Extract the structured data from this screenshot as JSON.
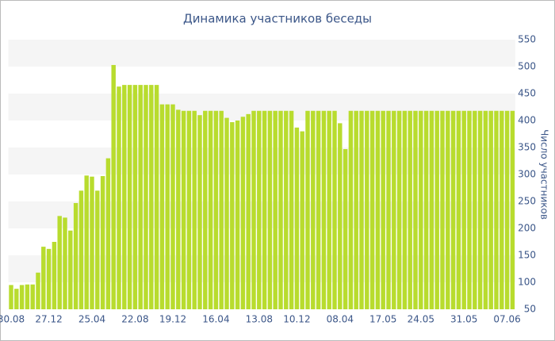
{
  "chart_data": {
    "type": "bar",
    "title": "Динамика участников беседы",
    "y_label": "Число участников",
    "categories": [
      "30.08",
      null,
      null,
      null,
      null,
      null,
      null,
      "27.12",
      null,
      null,
      null,
      null,
      null,
      null,
      null,
      "25.04",
      null,
      null,
      null,
      null,
      null,
      null,
      null,
      "22.08",
      null,
      null,
      null,
      null,
      null,
      null,
      "19.12",
      null,
      null,
      null,
      null,
      null,
      null,
      null,
      "16.04",
      null,
      null,
      null,
      null,
      null,
      null,
      null,
      "13.08",
      null,
      null,
      null,
      null,
      null,
      null,
      "10.12",
      null,
      null,
      null,
      null,
      null,
      null,
      null,
      "08.04",
      null,
      null,
      null,
      null,
      null,
      null,
      null,
      "17.05",
      null,
      null,
      null,
      null,
      null,
      null,
      "24.05",
      null,
      null,
      null,
      null,
      null,
      null,
      null,
      "31.05",
      null,
      null,
      null,
      null,
      null,
      null,
      null,
      "07.06",
      null
    ],
    "values": [
      95,
      88,
      95,
      96,
      96,
      118,
      166,
      162,
      175,
      223,
      220,
      196,
      247,
      270,
      298,
      296,
      270,
      297,
      330,
      503,
      463,
      466,
      466,
      466,
      466,
      466,
      466,
      466,
      430,
      430,
      430,
      420,
      418,
      418,
      418,
      410,
      418,
      418,
      418,
      418,
      405,
      397,
      400,
      407,
      412,
      418,
      418,
      418,
      418,
      418,
      418,
      418,
      418,
      387,
      380,
      418,
      418,
      418,
      418,
      418,
      418,
      395,
      347,
      418,
      418,
      418,
      418,
      418,
      418,
      418,
      418,
      418,
      418,
      418,
      418,
      418,
      418,
      418,
      418,
      418,
      418,
      418,
      418,
      418,
      418,
      418,
      418,
      418,
      418,
      418,
      418,
      418,
      418,
      418
    ],
    "color": "#b8dc2e",
    "ylim": [
      50,
      550
    ],
    "yticks": [
      50,
      100,
      150,
      200,
      250,
      300,
      350,
      400,
      450,
      500,
      550
    ],
    "bands": true,
    "band_color": "#f5f5f5"
  }
}
